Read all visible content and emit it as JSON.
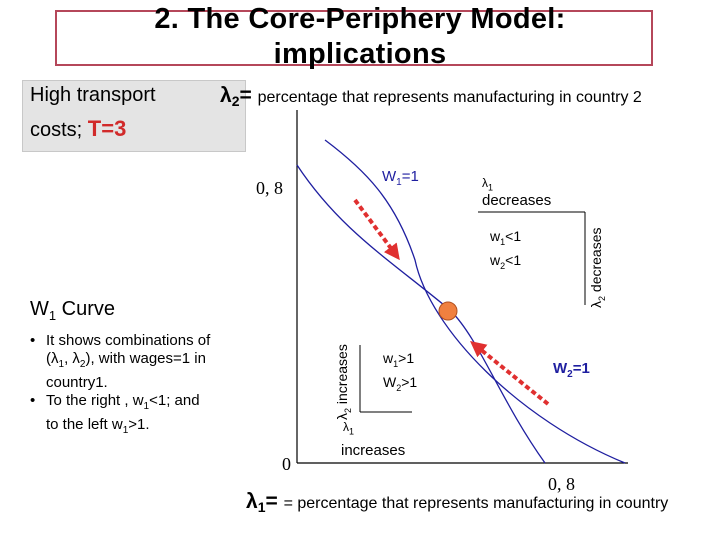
{
  "title": {
    "line1": "2. The Core-Periphery Model:",
    "line2": "implications"
  },
  "condition": {
    "line1": "High transport",
    "line2_prefix": "costs; ",
    "t_value": "T=3"
  },
  "lambda2_definition": {
    "symbol": "λ",
    "sub": "2",
    "eq": "= ",
    "text": "percentage that represents manufacturing in country 2"
  },
  "lambda1_definition": {
    "symbol": "λ",
    "sub": "1",
    "eq": "= ",
    "text": "= percentage that represents manufacturing in country"
  },
  "axis": {
    "origin": "0",
    "y_tick": "0, 8",
    "x_tick": "0, 8"
  },
  "curves": {
    "w1_label": {
      "base": "W",
      "sub": "1",
      "rest": "=1"
    },
    "w2_label": {
      "base": "W",
      "sub": "2",
      "rest": "=1"
    },
    "colors": {
      "curve": "#1f1fa0",
      "arrow": "#e03030",
      "equilibrium": "#f08040"
    }
  },
  "upper_region": {
    "lam1_dec": {
      "sym": "λ",
      "sub": "1",
      "word": "decreases"
    },
    "lam2_dec": {
      "sym": "λ",
      "sub": "2",
      "word": "decreases"
    },
    "w1": {
      "base": "w",
      "sub": "1",
      "rest": "<1"
    },
    "w2": {
      "base": "w",
      "sub": "2",
      "rest": "<1"
    }
  },
  "lower_region": {
    "lam2_inc": {
      "sym": "λ",
      "sub": "2",
      "word": "increases"
    },
    "lam1_inc": {
      "sym": "λ",
      "sub": "1",
      "word": "increases"
    },
    "w1": {
      "base": "w",
      "sub": "1",
      "rest": ">1"
    },
    "w2": {
      "base": "W",
      "sub": "2",
      "rest": ">1"
    }
  },
  "w1_curve": {
    "heading": {
      "base": "W",
      "sub": "1",
      "rest": " Curve"
    },
    "bullet_symbol": "•",
    "bullet1": {
      "l1": "It shows combinations of",
      "l2_a": "(λ",
      "l2_s1": "1",
      "l2_b": ", λ",
      "l2_s2": "2",
      "l2_c": "), with wages=1 in",
      "l3": "country1."
    },
    "bullet2": {
      "l1_a": "To the right ,  w",
      "l1_s": "1",
      "l1_b": "<1; and",
      "l2_a": "to the left w",
      "l2_s": "1",
      "l2_b": ">1."
    }
  }
}
